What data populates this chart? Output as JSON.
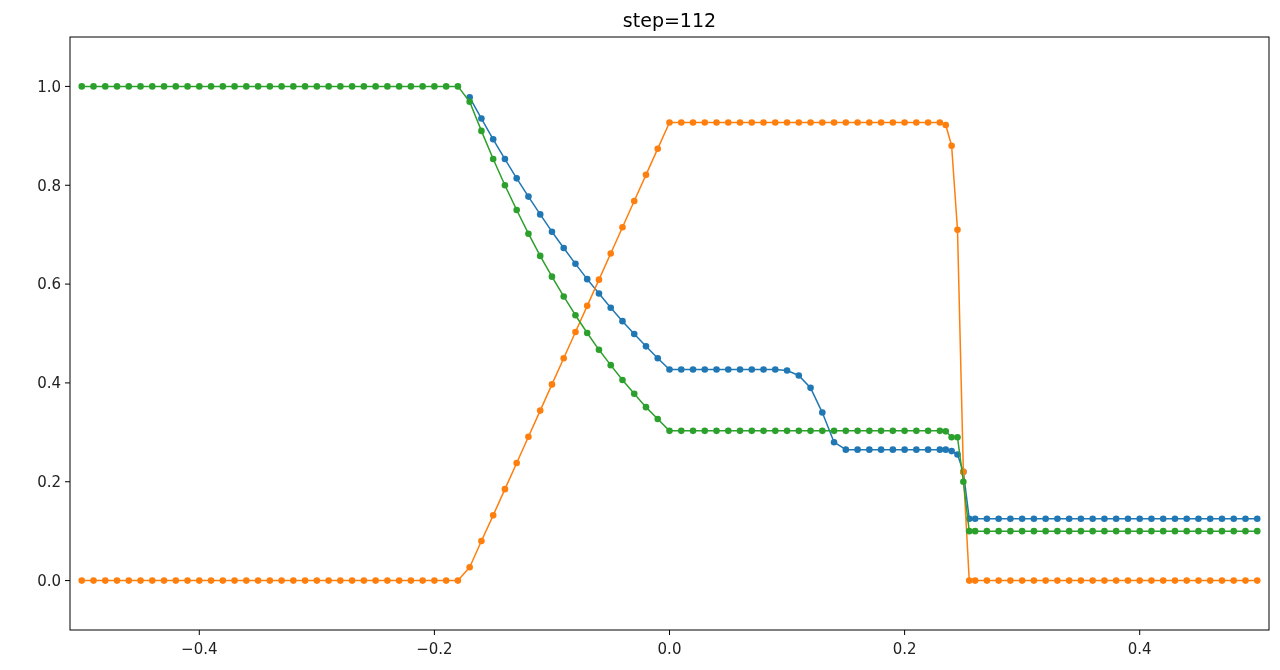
{
  "chart_data": {
    "type": "line",
    "title": "step=112",
    "marker": "circle",
    "line_style": "solid",
    "x": [
      -0.5,
      -0.49,
      -0.48,
      -0.47,
      -0.46,
      -0.45,
      -0.44,
      -0.43,
      -0.42,
      -0.41,
      -0.4,
      -0.39,
      -0.38,
      -0.37,
      -0.36,
      -0.35,
      -0.34,
      -0.33,
      -0.32,
      -0.31,
      -0.3,
      -0.29,
      -0.28,
      -0.27,
      -0.26,
      -0.25,
      -0.24,
      -0.23,
      -0.22,
      -0.21,
      -0.2,
      -0.19,
      -0.18,
      -0.17,
      -0.16,
      -0.15,
      -0.14,
      -0.13,
      -0.12,
      -0.11,
      -0.1,
      -0.09,
      -0.08,
      -0.07,
      -0.06,
      -0.05,
      -0.04,
      -0.03,
      -0.02,
      -0.01,
      0,
      0.01,
      0.02,
      0.03,
      0.04,
      0.05,
      0.06,
      0.07,
      0.08,
      0.09,
      0.1,
      0.11,
      0.12,
      0.13,
      0.14,
      0.15,
      0.16,
      0.17,
      0.18,
      0.19,
      0.2,
      0.21,
      0.22,
      0.23,
      0.235,
      0.24,
      0.245,
      0.25,
      0.255,
      0.26,
      0.27,
      0.28,
      0.29,
      0.3,
      0.31,
      0.32,
      0.33,
      0.34,
      0.35,
      0.36,
      0.37,
      0.38,
      0.39,
      0.4,
      0.41,
      0.42,
      0.43,
      0.44,
      0.45,
      0.46,
      0.47,
      0.48,
      0.49,
      0.5
    ],
    "series": [
      {
        "color": "#1f77b4",
        "values": [
          null,
          null,
          null,
          null,
          null,
          null,
          null,
          null,
          null,
          null,
          null,
          null,
          null,
          null,
          null,
          null,
          null,
          null,
          null,
          null,
          null,
          null,
          null,
          null,
          null,
          null,
          null,
          null,
          null,
          null,
          null,
          null,
          null,
          0.978,
          0.935,
          0.893,
          0.853,
          0.814,
          0.777,
          0.741,
          0.706,
          0.673,
          0.641,
          0.61,
          0.581,
          0.552,
          0.525,
          0.499,
          0.474,
          0.45,
          0.427,
          0.427,
          0.427,
          0.427,
          0.427,
          0.427,
          0.427,
          0.427,
          0.427,
          0.427,
          0.425,
          0.415,
          0.39,
          0.34,
          0.28,
          0.265,
          0.265,
          0.265,
          0.265,
          0.265,
          0.265,
          0.265,
          0.265,
          0.265,
          0.265,
          0.262,
          0.255,
          0.22,
          0.125,
          0.125,
          0.125,
          0.125,
          0.125,
          0.125,
          0.125,
          0.125,
          0.125,
          0.125,
          0.125,
          0.125,
          0.125,
          0.125,
          0.125,
          0.125,
          0.125,
          0.125,
          0.125,
          0.125,
          0.125,
          0.125,
          0.125,
          0.125,
          0.125,
          0.125
        ]
      },
      {
        "color": "#ff7f0e",
        "values": [
          0,
          0,
          0,
          0,
          0,
          0,
          0,
          0,
          0,
          0,
          0,
          0,
          0,
          0,
          0,
          0,
          0,
          0,
          0,
          0,
          0,
          0,
          0,
          0,
          0,
          0,
          0,
          0,
          0,
          0,
          0,
          0,
          0,
          0.027,
          0.08,
          0.132,
          0.185,
          0.238,
          0.291,
          0.344,
          0.397,
          0.45,
          0.503,
          0.556,
          0.609,
          0.662,
          0.715,
          0.768,
          0.821,
          0.874,
          0.927,
          0.927,
          0.927,
          0.927,
          0.927,
          0.927,
          0.927,
          0.927,
          0.927,
          0.927,
          0.927,
          0.927,
          0.927,
          0.927,
          0.927,
          0.927,
          0.927,
          0.927,
          0.927,
          0.927,
          0.927,
          0.927,
          0.927,
          0.927,
          0.922,
          0.88,
          0.71,
          0.22,
          0,
          0,
          0,
          0,
          0,
          0,
          0,
          0,
          0,
          0,
          0,
          0,
          0,
          0,
          0,
          0,
          0,
          0,
          0,
          0,
          0,
          0,
          0,
          0,
          0,
          0
        ]
      },
      {
        "color": "#2ca02c",
        "values": [
          1,
          1,
          1,
          1,
          1,
          1,
          1,
          1,
          1,
          1,
          1,
          1,
          1,
          1,
          1,
          1,
          1,
          1,
          1,
          1,
          1,
          1,
          1,
          1,
          1,
          1,
          1,
          1,
          1,
          1,
          1,
          1,
          1,
          0.969,
          0.91,
          0.853,
          0.8,
          0.75,
          0.702,
          0.657,
          0.615,
          0.575,
          0.537,
          0.501,
          0.467,
          0.436,
          0.406,
          0.378,
          0.351,
          0.327,
          0.303,
          0.303,
          0.303,
          0.303,
          0.303,
          0.303,
          0.303,
          0.303,
          0.303,
          0.303,
          0.303,
          0.303,
          0.303,
          0.303,
          0.303,
          0.303,
          0.303,
          0.303,
          0.303,
          0.303,
          0.303,
          0.303,
          0.303,
          0.303,
          0.302,
          0.29,
          0.29,
          0.2,
          0.1,
          0.1,
          0.1,
          0.1,
          0.1,
          0.1,
          0.1,
          0.1,
          0.1,
          0.1,
          0.1,
          0.1,
          0.1,
          0.1,
          0.1,
          0.1,
          0.1,
          0.1,
          0.1,
          0.1,
          0.1,
          0.1,
          0.1,
          0.1,
          0.1,
          0.1
        ]
      }
    ],
    "xlim": [
      -0.51,
      0.51
    ],
    "xticks": [
      {
        "value": -0.4,
        "label": "−0.4"
      },
      {
        "value": -0.2,
        "label": "−0.2"
      },
      {
        "value": 0,
        "label": "0.0"
      },
      {
        "value": 0.2,
        "label": "0.2"
      },
      {
        "value": 0.4,
        "label": "0.4"
      }
    ],
    "ylim": [
      -0.1,
      1.1
    ],
    "yticks": [
      {
        "value": 0,
        "label": "0.0"
      },
      {
        "value": 0.2,
        "label": "0.2"
      },
      {
        "value": 0.4,
        "label": "0.4"
      },
      {
        "value": 0.6,
        "label": "0.6"
      },
      {
        "value": 0.8,
        "label": "0.8"
      },
      {
        "value": 1,
        "label": "1.0"
      }
    ]
  }
}
